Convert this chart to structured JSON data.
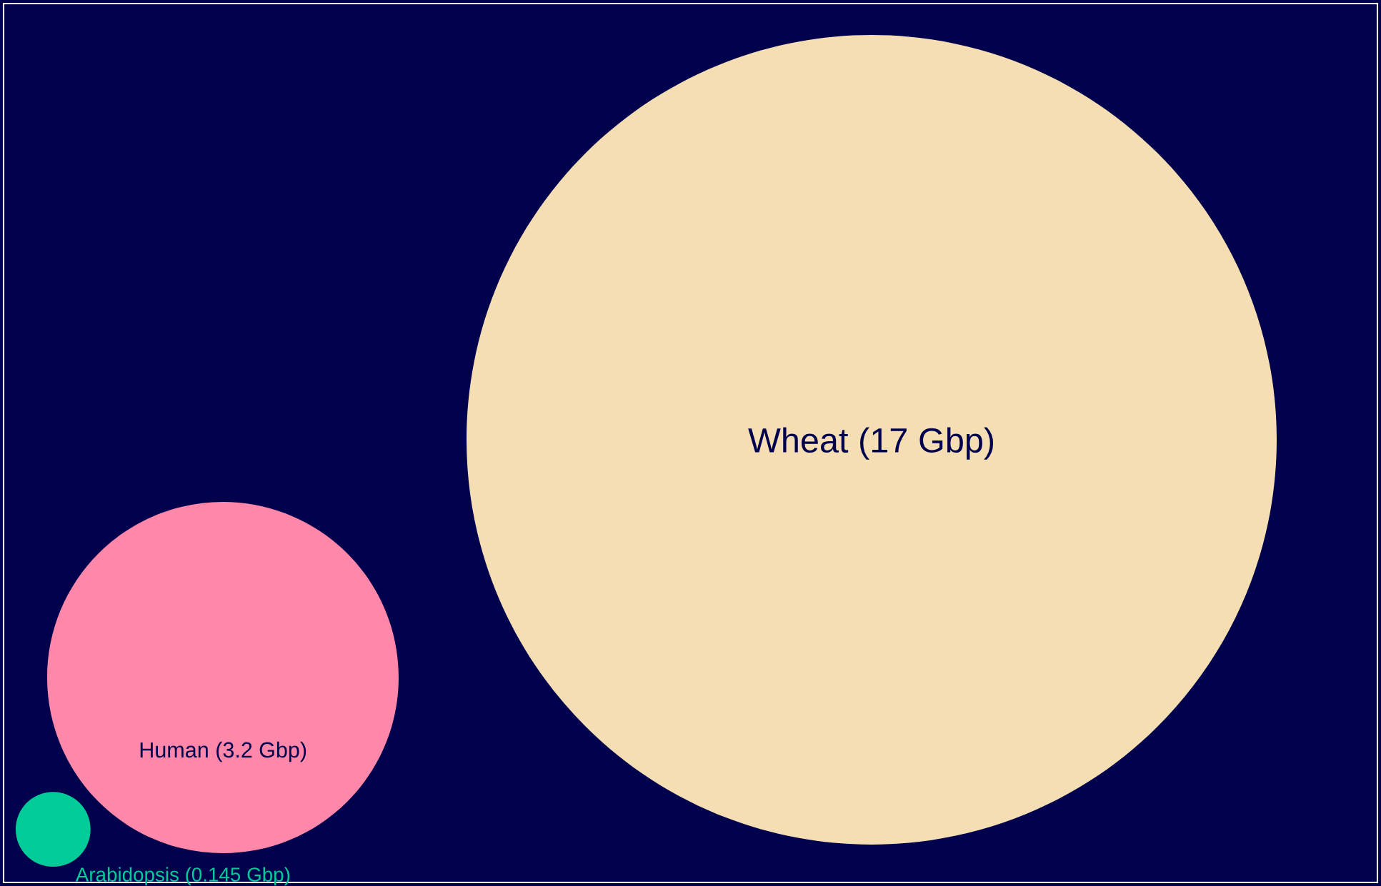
{
  "chart_data": {
    "type": "other",
    "categories": [
      "Arabidopsis (0.145 Gbp)",
      "Human (3.2 Gbp)",
      "Wheat (17 Gbp)"
    ],
    "values": [
      0.145,
      3.2,
      17
    ],
    "data_labels": true,
    "colors": [
      "#00cc99",
      "#ff88aa",
      "#f5deb3"
    ]
  }
}
